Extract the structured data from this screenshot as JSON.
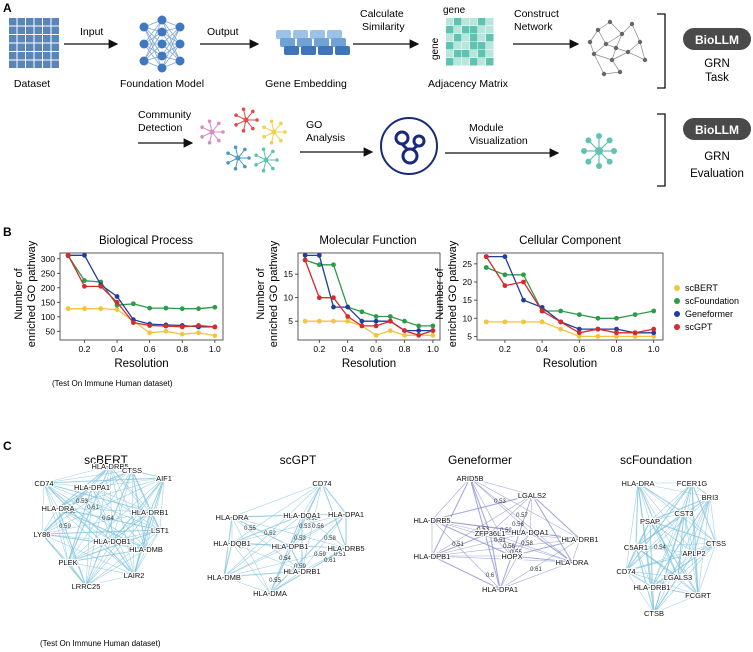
{
  "panel_a": {
    "label": "A",
    "pipeline": {
      "dataset": "Dataset",
      "input": "Input",
      "foundation_model": "Foundation Model",
      "output": "Output",
      "gene_embedding": "Gene Embedding",
      "calc_sim_1": "Calculate",
      "calc_sim_2": "Similarity",
      "matrix_top": "gene",
      "matrix_side": "gene",
      "adjacency_matrix": "Adjacency Matrix",
      "construct_1": "Construct",
      "construct_2": "Network"
    },
    "eval": {
      "community_1": "Community",
      "community_2": "Detection",
      "go_1": "GO",
      "go_2": "Analysis",
      "module_1": "Module",
      "module_2": "Visualization"
    },
    "task_box": {
      "badge": "BioLLM",
      "line1": "GRN",
      "line2": "Task"
    },
    "eval_box": {
      "badge": "BioLLM",
      "line1": "GRN",
      "line2": "Evaluation"
    }
  },
  "panel_b": {
    "label": "B",
    "ylabel_line1": "Number of",
    "ylabel_line2": "enriched GO pathway",
    "footnote": "(Test On Immune Human dataset)"
  },
  "chart_data": [
    {
      "type": "line",
      "title": "Biological Process",
      "xlabel": "Resolution",
      "ylabel": "Number of enriched GO pathway",
      "xlim": [
        0.05,
        1.05
      ],
      "ylim": [
        20,
        320
      ],
      "xticks": [
        "0.2",
        "0.4",
        "0.6",
        "0.8",
        "1.0"
      ],
      "yticks": [
        "50",
        "100",
        "150",
        "200",
        "250",
        "300"
      ],
      "x": [
        0.1,
        0.2,
        0.3,
        0.4,
        0.5,
        0.6,
        0.7,
        0.8,
        0.9,
        1.0
      ],
      "series": [
        {
          "name": "scBERT",
          "color": "#f3c43d",
          "values": [
            128,
            128,
            128,
            125,
            85,
            45,
            50,
            40,
            45,
            35
          ]
        },
        {
          "name": "scFoundation",
          "color": "#2e9b48",
          "values": [
            310,
            225,
            220,
            140,
            145,
            130,
            130,
            128,
            128,
            133
          ]
        },
        {
          "name": "Geneformer",
          "color": "#1f3f9b",
          "values": [
            312,
            312,
            210,
            170,
            90,
            75,
            72,
            70,
            65,
            65
          ]
        },
        {
          "name": "scGPT",
          "color": "#d82a2a",
          "values": [
            312,
            205,
            205,
            150,
            80,
            70,
            68,
            65,
            70,
            65
          ]
        }
      ]
    },
    {
      "type": "line",
      "title": "Molecular Function",
      "xlabel": "Resolution",
      "ylabel": "",
      "xlim": [
        0.05,
        1.05
      ],
      "ylim": [
        1,
        19.5
      ],
      "xticks": [
        "0.2",
        "0.4",
        "0.6",
        "0.8",
        "1.0"
      ],
      "yticks": [
        "5",
        "10",
        "15"
      ],
      "x": [
        0.1,
        0.2,
        0.3,
        0.4,
        0.5,
        0.6,
        0.7,
        0.8,
        0.9,
        1.0
      ],
      "series": [
        {
          "name": "scBERT",
          "color": "#f3c43d",
          "values": [
            5,
            5,
            5,
            5,
            4,
            2,
            3,
            2,
            2,
            2
          ]
        },
        {
          "name": "scFoundation",
          "color": "#2e9b48",
          "values": [
            18,
            17,
            17,
            8,
            7,
            6,
            6,
            5,
            4,
            4
          ]
        },
        {
          "name": "Geneformer",
          "color": "#1f3f9b",
          "values": [
            19,
            19,
            8,
            8,
            5,
            5,
            5,
            3,
            3,
            3
          ]
        },
        {
          "name": "scGPT",
          "color": "#d82a2a",
          "values": [
            18,
            10,
            10,
            6,
            4,
            4,
            5,
            3,
            2,
            3
          ]
        }
      ]
    },
    {
      "type": "line",
      "title": "Cellular Component",
      "xlabel": "Resolution",
      "ylabel": "",
      "xlim": [
        0.05,
        1.05
      ],
      "ylim": [
        4,
        28
      ],
      "xticks": [
        "0.2",
        "0.4",
        "0.6",
        "0.8",
        "1.0"
      ],
      "yticks": [
        "5",
        "10",
        "15",
        "20",
        "25"
      ],
      "x": [
        0.1,
        0.2,
        0.3,
        0.4,
        0.5,
        0.6,
        0.7,
        0.8,
        0.9,
        1.0
      ],
      "series": [
        {
          "name": "scBERT",
          "color": "#f3c43d",
          "values": [
            9,
            9,
            9,
            9,
            7,
            5,
            5,
            5,
            5,
            5
          ]
        },
        {
          "name": "scFoundation",
          "color": "#2e9b48",
          "values": [
            24,
            22,
            22,
            12,
            12,
            11,
            10,
            10,
            11,
            12
          ]
        },
        {
          "name": "Geneformer",
          "color": "#1f3f9b",
          "values": [
            27,
            27,
            15,
            13,
            9,
            7,
            7,
            7,
            6,
            6
          ]
        },
        {
          "name": "scGPT",
          "color": "#d82a2a",
          "values": [
            27,
            19,
            20,
            12,
            9,
            6,
            7,
            6,
            6,
            7
          ]
        }
      ]
    }
  ],
  "legend": [
    {
      "name": "scBERT",
      "color": "#f3c43d"
    },
    {
      "name": "scFoundation",
      "color": "#2e9b48"
    },
    {
      "name": "Geneformer",
      "color": "#1f3f9b"
    },
    {
      "name": "scGPT",
      "color": "#d82a2a"
    }
  ],
  "panel_c": {
    "label": "C",
    "footnote": "(Test On Immune Human dataset)",
    "networks": [
      {
        "title": "scBERT",
        "genes": [
          "CD74",
          "HLA-DRB5",
          "CTSS",
          "AIF1",
          "HLA-DPA1",
          "HLA-DRA",
          "HLA-DRB1",
          "LST1",
          "LY86",
          "HLA-DQB1",
          "HLA-DMB",
          "PLEK",
          "LAIR2",
          "LRRC25"
        ],
        "weights": [
          "0.56",
          "0.53",
          "0.61",
          "0.59",
          "0.54"
        ]
      },
      {
        "title": "scGPT",
        "genes": [
          "CD74",
          "HLA-DRA",
          "HLA-DQA1",
          "HLA-DPA1",
          "HLA-DQB1",
          "HLA-DPB1",
          "HLA-DRB5",
          "HLA-DRB1",
          "HLA-DMB",
          "HLA-DMA"
        ],
        "weights": [
          "0.55",
          "0.53",
          "0.52",
          "0.58",
          "0.56",
          "0.59",
          "0.53",
          "0.53",
          "0.61",
          "0.54",
          "0.51",
          "0.59",
          "0.55"
        ]
      },
      {
        "title": "Geneformer",
        "genes": [
          "ARID5B",
          "LGALS2",
          "HLA-DRB5",
          "ZFP36L1",
          "HLA-DQA1",
          "HLA-DRB1",
          "HLA-DPB1",
          "HOPX",
          "HLA-DRA",
          "HLA-DPA1"
        ],
        "weights": [
          "0.53",
          "0.57",
          "0.53",
          "0.51",
          "0.52",
          "0.56",
          "0.51",
          "0.56",
          "0.55",
          "0.58",
          "0.61",
          "0.6"
        ]
      },
      {
        "title": "scFoundation",
        "genes": [
          "HLA-DRA",
          "FCER1G",
          "BRI3",
          "CST3",
          "PSAP",
          "CTSS",
          "C5AR1",
          "APLP2",
          "CD74",
          "LGALS3",
          "HLA-DRB1",
          "FCGRT",
          "CTSB"
        ],
        "weights": [
          "0.54"
        ]
      }
    ]
  }
}
